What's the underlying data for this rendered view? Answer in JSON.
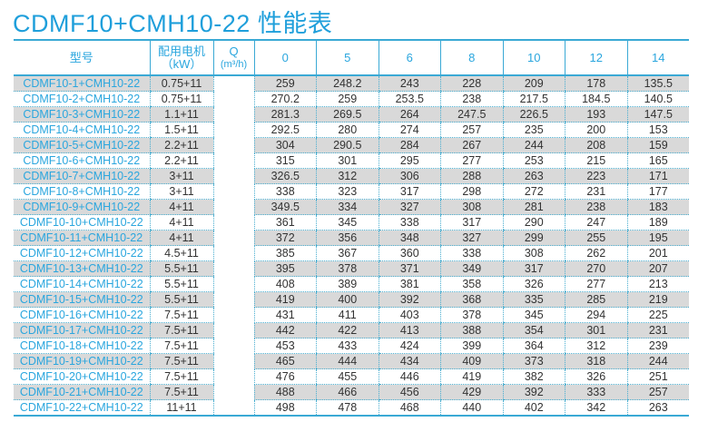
{
  "title": "CDMF10+CMH10-22 性能表",
  "colors": {
    "accent": "#1f9fdb",
    "row_shade": "#d9d9d9",
    "text": "#333333"
  },
  "header": {
    "model": "型号",
    "motor": "配用电机",
    "motor_unit": "（kW）",
    "q": "Q",
    "q_unit": "(m³/h)",
    "flows": [
      "0",
      "5",
      "6",
      "8",
      "10",
      "12",
      "14"
    ]
  },
  "rows": [
    {
      "model": "CDMF10-1+CMH10-22",
      "motor": "0.75+11",
      "values": [
        "259",
        "248.2",
        "243",
        "228",
        "209",
        "178",
        "135.5"
      ]
    },
    {
      "model": "CDMF10-2+CMH10-22",
      "motor": "0.75+11",
      "values": [
        "270.2",
        "259",
        "253.5",
        "238",
        "217.5",
        "184.5",
        "140.5"
      ]
    },
    {
      "model": "CDMF10-3+CMH10-22",
      "motor": "1.1+11",
      "values": [
        "281.3",
        "269.5",
        "264",
        "247.5",
        "226.5",
        "193",
        "147.5"
      ]
    },
    {
      "model": "CDMF10-4+CMH10-22",
      "motor": "1.5+11",
      "values": [
        "292.5",
        "280",
        "274",
        "257",
        "235",
        "200",
        "153"
      ]
    },
    {
      "model": "CDMF10-5+CMH10-22",
      "motor": "2.2+11",
      "values": [
        "304",
        "290.5",
        "284",
        "267",
        "244",
        "208",
        "159"
      ]
    },
    {
      "model": "CDMF10-6+CMH10-22",
      "motor": "2.2+11",
      "values": [
        "315",
        "301",
        "295",
        "277",
        "253",
        "215",
        "165"
      ]
    },
    {
      "model": "CDMF10-7+CMH10-22",
      "motor": "3+11",
      "values": [
        "326.5",
        "312",
        "306",
        "288",
        "263",
        "223",
        "171"
      ]
    },
    {
      "model": "CDMF10-8+CMH10-22",
      "motor": "3+11",
      "values": [
        "338",
        "323",
        "317",
        "298",
        "272",
        "231",
        "177"
      ]
    },
    {
      "model": "CDMF10-9+CMH10-22",
      "motor": "4+11",
      "values": [
        "349.5",
        "334",
        "327",
        "308",
        "281",
        "238",
        "183"
      ]
    },
    {
      "model": "CDMF10-10+CMH10-22",
      "motor": "4+11",
      "values": [
        "361",
        "345",
        "338",
        "317",
        "290",
        "247",
        "189"
      ]
    },
    {
      "model": "CDMF10-11+CMH10-22",
      "motor": "4+11",
      "values": [
        "372",
        "356",
        "348",
        "327",
        "299",
        "255",
        "195"
      ]
    },
    {
      "model": "CDMF10-12+CMH10-22",
      "motor": "4.5+11",
      "values": [
        "385",
        "367",
        "360",
        "338",
        "308",
        "262",
        "201"
      ]
    },
    {
      "model": "CDMF10-13+CMH10-22",
      "motor": "5.5+11",
      "values": [
        "395",
        "378",
        "371",
        "349",
        "317",
        "270",
        "207"
      ]
    },
    {
      "model": "CDMF10-14+CMH10-22",
      "motor": "5.5+11",
      "values": [
        "408",
        "389",
        "381",
        "358",
        "326",
        "277",
        "213"
      ]
    },
    {
      "model": "CDMF10-15+CMH10-22",
      "motor": "5.5+11",
      "values": [
        "419",
        "400",
        "392",
        "368",
        "335",
        "285",
        "219"
      ]
    },
    {
      "model": "CDMF10-16+CMH10-22",
      "motor": "7.5+11",
      "values": [
        "431",
        "411",
        "403",
        "378",
        "345",
        "294",
        "225"
      ]
    },
    {
      "model": "CDMF10-17+CMH10-22",
      "motor": "7.5+11",
      "values": [
        "442",
        "422",
        "413",
        "388",
        "354",
        "301",
        "231"
      ]
    },
    {
      "model": "CDMF10-18+CMH10-22",
      "motor": "7.5+11",
      "values": [
        "453",
        "433",
        "424",
        "399",
        "364",
        "312",
        "239"
      ]
    },
    {
      "model": "CDMF10-19+CMH10-22",
      "motor": "7.5+11",
      "values": [
        "465",
        "444",
        "434",
        "409",
        "373",
        "318",
        "244"
      ]
    },
    {
      "model": "CDMF10-20+CMH10-22",
      "motor": "7.5+11",
      "values": [
        "476",
        "455",
        "446",
        "419",
        "382",
        "326",
        "251"
      ]
    },
    {
      "model": "CDMF10-21+CMH10-22",
      "motor": "7.5+11",
      "values": [
        "488",
        "466",
        "456",
        "429",
        "392",
        "333",
        "257"
      ]
    },
    {
      "model": "CDMF10-22+CMH10-22",
      "motor": "11+11",
      "values": [
        "498",
        "478",
        "468",
        "440",
        "402",
        "342",
        "263"
      ]
    }
  ]
}
